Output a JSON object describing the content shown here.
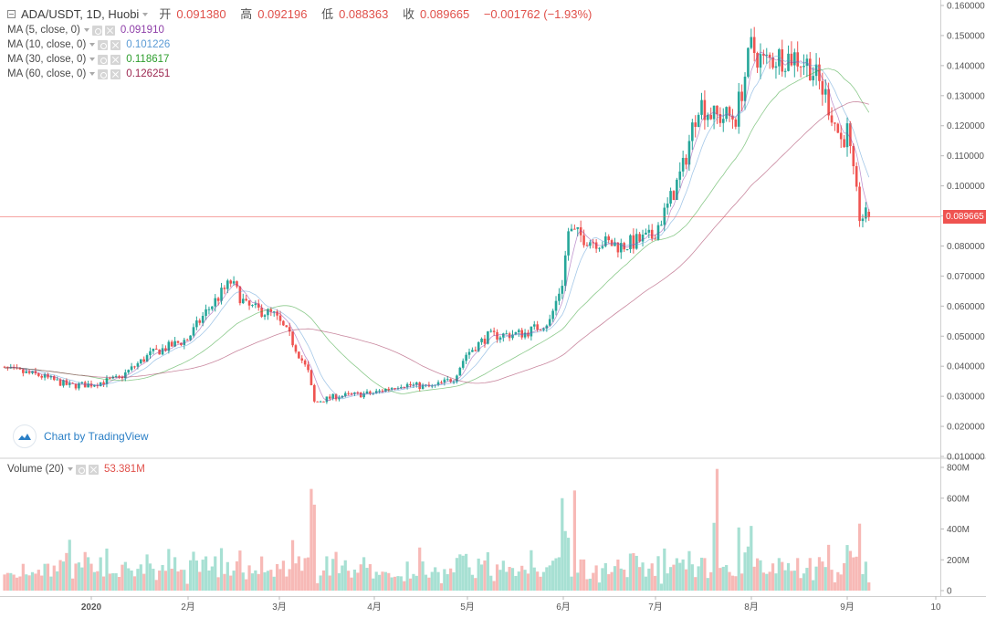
{
  "header": {
    "symbol": "ADA/USDT, 1D, Huobi",
    "open_label": "开",
    "open": "0.091380",
    "high_label": "高",
    "high": "0.092196",
    "low_label": "低",
    "low": "0.088363",
    "close_label": "收",
    "close": "0.089665",
    "change": "−0.001762 (−1.93%)"
  },
  "indicators": [
    {
      "label": "MA (5, close, 0)",
      "value": "0.091910",
      "color": "#8e3fa8"
    },
    {
      "label": "MA (10, close, 0)",
      "value": "0.101226",
      "color": "#5b9bd5"
    },
    {
      "label": "MA (30, close, 0)",
      "value": "0.118617",
      "color": "#2e9e2e"
    },
    {
      "label": "MA (60, close, 0)",
      "value": "0.126251",
      "color": "#9c2750"
    }
  ],
  "volume": {
    "label": "Volume (20)",
    "value": "53.381M"
  },
  "watermark": "Chart by TradingView",
  "last_price_tag": "0.089665",
  "colors": {
    "up": "#26a69a",
    "down": "#ef5350",
    "vol_up": "#a7e0d3",
    "vol_down": "#f7b9b6",
    "grid": "#e6e6e6",
    "axis_text": "#555555"
  },
  "chart_data": {
    "type": "candlestick",
    "price_axis": {
      "min": 0.01,
      "max": 0.16,
      "ticks": [
        "0.160000",
        "0.150000",
        "0.140000",
        "0.130000",
        "0.120000",
        "0.110000",
        "0.100000",
        "0.090000",
        "0.080000",
        "0.070000",
        "0.060000",
        "0.050000",
        "0.040000",
        "0.030000",
        "0.020000",
        "0.010000"
      ]
    },
    "volume_axis": {
      "min": 0,
      "max": 800,
      "unit": "M",
      "ticks": [
        "800M",
        "600M",
        "400M",
        "200M",
        "0"
      ]
    },
    "x_axis": {
      "labels": [
        "2020",
        "2月",
        "3月",
        "4月",
        "5月",
        "6月",
        "7月",
        "8月",
        "9月",
        "10"
      ]
    },
    "ma_current": {
      "ma5": 0.09191,
      "ma10": 0.101226,
      "ma30": 0.118617,
      "ma60": 0.126251
    },
    "approx_close_path": [
      [
        "2019-12-01",
        0.0395
      ],
      [
        "2019-12-15",
        0.037
      ],
      [
        "2019-12-25",
        0.0335
      ],
      [
        "2020-01-01",
        0.034
      ],
      [
        "2020-01-10",
        0.036
      ],
      [
        "2020-01-20",
        0.044
      ],
      [
        "2020-02-01",
        0.049
      ],
      [
        "2020-02-07",
        0.058
      ],
      [
        "2020-02-15",
        0.068
      ],
      [
        "2020-02-20",
        0.06
      ],
      [
        "2020-02-29",
        0.057
      ],
      [
        "2020-03-05",
        0.05
      ],
      [
        "2020-03-11",
        0.038
      ],
      [
        "2020-03-13",
        0.028
      ],
      [
        "2020-03-20",
        0.03
      ],
      [
        "2020-04-01",
        0.031
      ],
      [
        "2020-04-10",
        0.034
      ],
      [
        "2020-04-20",
        0.033
      ],
      [
        "2020-04-27",
        0.036
      ],
      [
        "2020-05-01",
        0.044
      ],
      [
        "2020-05-08",
        0.05
      ],
      [
        "2020-05-20",
        0.051
      ],
      [
        "2020-05-28",
        0.055
      ],
      [
        "2020-06-01",
        0.068
      ],
      [
        "2020-06-03",
        0.085
      ],
      [
        "2020-06-10",
        0.082
      ],
      [
        "2020-06-20",
        0.08
      ],
      [
        "2020-06-30",
        0.083
      ],
      [
        "2020-07-05",
        0.093
      ],
      [
        "2020-07-10",
        0.106
      ],
      [
        "2020-07-15",
        0.128
      ],
      [
        "2020-07-20",
        0.123
      ],
      [
        "2020-07-27",
        0.123
      ],
      [
        "2020-08-01",
        0.146
      ],
      [
        "2020-08-05",
        0.141
      ],
      [
        "2020-08-10",
        0.143
      ],
      [
        "2020-08-15",
        0.143
      ],
      [
        "2020-08-20",
        0.14
      ],
      [
        "2020-08-25",
        0.13
      ],
      [
        "2020-08-30",
        0.115
      ],
      [
        "2020-09-01",
        0.118
      ],
      [
        "2020-09-03",
        0.103
      ],
      [
        "2020-09-05",
        0.09
      ],
      [
        "2020-09-08",
        0.0897
      ]
    ]
  }
}
